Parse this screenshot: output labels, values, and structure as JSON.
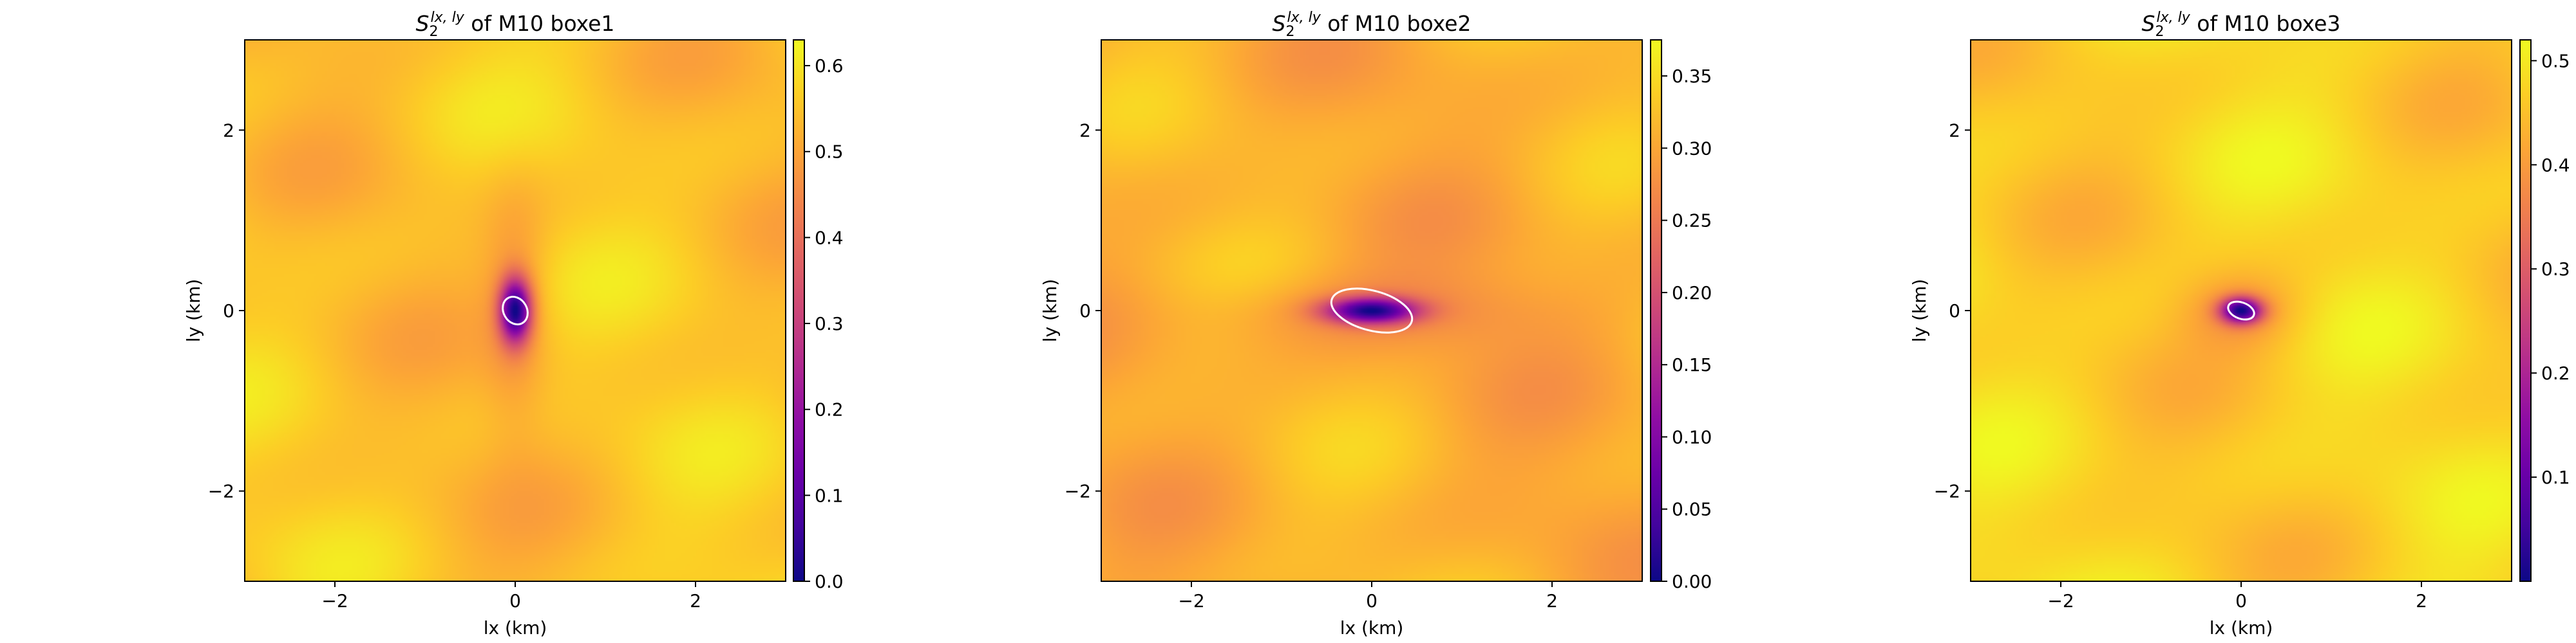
{
  "figure": {
    "colormap": "plasma",
    "ellipse_color": "#ffffff"
  },
  "chart_data": [
    {
      "type": "heatmap",
      "title": "S_2^{lx,ly} of M10 boxe1",
      "title_main": "S",
      "title_sub": "2",
      "title_sup": "lx, ly",
      "title_rest": " of M10 boxe1",
      "xlabel": "lx (km)",
      "ylabel": "ly (km)",
      "xlim": [
        -3,
        3
      ],
      "ylim": [
        -3,
        3
      ],
      "xticks": [
        -2,
        0,
        2
      ],
      "yticks": [
        -2,
        0,
        2
      ],
      "xtick_labels": [
        "−2",
        "0",
        "2"
      ],
      "ytick_labels": [
        "−2",
        "0",
        "2"
      ],
      "colorbar": {
        "range": [
          0,
          0.63
        ],
        "ticks": [
          0.0,
          0.1,
          0.2,
          0.3,
          0.4,
          0.5,
          0.6
        ],
        "tick_labels": [
          "0.0",
          "0.1",
          "0.2",
          "0.3",
          "0.4",
          "0.5",
          "0.6"
        ]
      },
      "field": {
        "background": 0.55,
        "minimum": 0.0,
        "min_center": [
          0,
          0
        ],
        "min_spread_x": 0.12,
        "min_spread_y": 0.25,
        "halo_spread_x": 0.25,
        "halo_spread_y": 0.9,
        "halo_depth": 0.12
      },
      "ellipse": {
        "center": [
          0,
          0
        ],
        "semi_axes": [
          0.13,
          0.16
        ],
        "angle_deg": 30
      }
    },
    {
      "type": "heatmap",
      "title": "S_2^{lx,ly} of M10 boxe2",
      "title_main": "S",
      "title_sub": "2",
      "title_sup": "lx, ly",
      "title_rest": " of M10 boxe2",
      "xlabel": "lx (km)",
      "ylabel": "ly (km)",
      "xlim": [
        -3,
        3
      ],
      "ylim": [
        -3,
        3
      ],
      "xticks": [
        -2,
        0,
        2
      ],
      "yticks": [
        -2,
        0,
        2
      ],
      "xtick_labels": [
        "−2",
        "0",
        "2"
      ],
      "ytick_labels": [
        "−2",
        "0",
        "2"
      ],
      "colorbar": {
        "range": [
          0,
          0.375
        ],
        "ticks": [
          0.0,
          0.05,
          0.1,
          0.15,
          0.2,
          0.25,
          0.3,
          0.35
        ],
        "tick_labels": [
          "0.00",
          "0.05",
          "0.10",
          "0.15",
          "0.20",
          "0.25",
          "0.30",
          "0.35"
        ]
      },
      "field": {
        "background": 0.31,
        "minimum": 0.0,
        "min_center": [
          0,
          0
        ],
        "min_spread_x": 0.35,
        "min_spread_y": 0.1,
        "halo_spread_x": 1.3,
        "halo_spread_y": 0.3,
        "halo_depth": 0.12
      },
      "ellipse": {
        "center": [
          0,
          0
        ],
        "semi_axes": [
          0.46,
          0.22
        ],
        "angle_deg": -15
      }
    },
    {
      "type": "heatmap",
      "title": "S_2^{lx,ly} of M10 boxe3",
      "title_main": "S",
      "title_sub": "2",
      "title_sup": "lx, ly",
      "title_rest": " of M10 boxe3",
      "xlabel": "lx (km)",
      "ylabel": "ly (km)",
      "xlim": [
        -3,
        3
      ],
      "ylim": [
        -3,
        3
      ],
      "xticks": [
        -2,
        0,
        2
      ],
      "yticks": [
        -2,
        0,
        2
      ],
      "xtick_labels": [
        "−2",
        "0",
        "2"
      ],
      "ytick_labels": [
        "−2",
        "0",
        "2"
      ],
      "colorbar": {
        "range": [
          0,
          0.52
        ],
        "ticks": [
          0.1,
          0.2,
          0.3,
          0.4,
          0.5
        ],
        "tick_labels": [
          "0.1",
          "0.2",
          "0.3",
          "0.4",
          "0.5"
        ]
      },
      "field": {
        "background": 0.47,
        "minimum": 0.0,
        "min_center": [
          0,
          0
        ],
        "min_spread_x": 0.16,
        "min_spread_y": 0.1,
        "halo_spread_x": 0.45,
        "halo_spread_y": 0.3,
        "halo_depth": 0.15
      },
      "ellipse": {
        "center": [
          0,
          0
        ],
        "semi_axes": [
          0.15,
          0.09
        ],
        "angle_deg": -20
      }
    }
  ]
}
